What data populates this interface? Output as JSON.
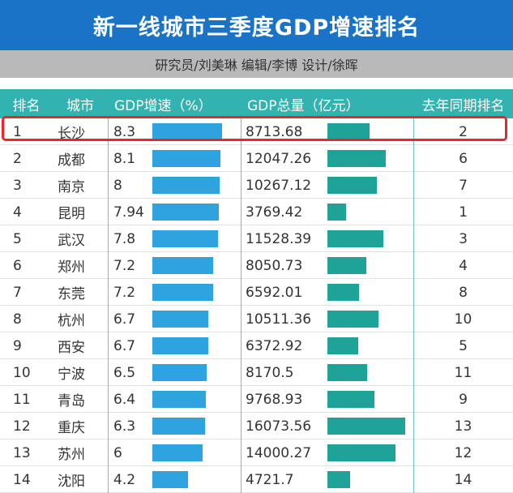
{
  "header": {
    "title": "新一线城市三季度GDP增速排名",
    "researcher": "研究员/刘美琳",
    "editor": "编辑/李博",
    "designer": "设计/徐晖"
  },
  "columns": {
    "rank": "排名",
    "city": "城市",
    "growth": "GDP增速（%）",
    "total": "GDP总量（亿元）",
    "last_year_rank": "去年同期排名"
  },
  "highlight_color": "#e8262b",
  "colors": {
    "title_bg": "#1a73c6",
    "header_bg": "#32b2b0",
    "growth_bar": "#2ea3df",
    "total_bar": "#1fa298"
  },
  "chart_data": {
    "type": "table",
    "title": "新一线城市三季度GDP增速排名",
    "highlighted_rank": 1,
    "rows": [
      {
        "rank": "1",
        "city": "长沙",
        "growth": 8.3,
        "growth_label": "8.3",
        "total": 8713.68,
        "total_label": "8713.68",
        "last_year_rank": "2"
      },
      {
        "rank": "2",
        "city": "成都",
        "growth": 8.1,
        "growth_label": "8.1",
        "total": 12047.26,
        "total_label": "12047.26",
        "last_year_rank": "6"
      },
      {
        "rank": "3",
        "city": "南京",
        "growth": 8,
        "growth_label": "8",
        "total": 10267.12,
        "total_label": "10267.12",
        "last_year_rank": "7"
      },
      {
        "rank": "4",
        "city": "昆明",
        "growth": 7.94,
        "growth_label": "7.94",
        "total": 3769.42,
        "total_label": "3769.42",
        "last_year_rank": "1"
      },
      {
        "rank": "5",
        "city": "武汉",
        "growth": 7.8,
        "growth_label": "7.8",
        "total": 11528.39,
        "total_label": "11528.39",
        "last_year_rank": "3"
      },
      {
        "rank": "6",
        "city": "郑州",
        "growth": 7.2,
        "growth_label": "7.2",
        "total": 8050.73,
        "total_label": "8050.73",
        "last_year_rank": "4"
      },
      {
        "rank": "7",
        "city": "东莞",
        "growth": 7.2,
        "growth_label": "7.2",
        "total": 6592.01,
        "total_label": "6592.01",
        "last_year_rank": "8"
      },
      {
        "rank": "8",
        "city": "杭州",
        "growth": 6.7,
        "growth_label": "6.7",
        "total": 10511.36,
        "total_label": "10511.36",
        "last_year_rank": "10"
      },
      {
        "rank": "9",
        "city": "西安",
        "growth": 6.7,
        "growth_label": "6.7",
        "total": 6372.92,
        "total_label": "6372.92",
        "last_year_rank": "5"
      },
      {
        "rank": "10",
        "city": "宁波",
        "growth": 6.5,
        "growth_label": "6.5",
        "total": 8170.5,
        "total_label": "8170.5",
        "last_year_rank": "11"
      },
      {
        "rank": "11",
        "city": "青岛",
        "growth": 6.4,
        "growth_label": "6.4",
        "total": 9768.93,
        "total_label": "9768.93",
        "last_year_rank": "9"
      },
      {
        "rank": "12",
        "city": "重庆",
        "growth": 6.3,
        "growth_label": "6.3",
        "total": 16073.56,
        "total_label": "16073.56",
        "last_year_rank": "13"
      },
      {
        "rank": "13",
        "city": "苏州",
        "growth": 6,
        "growth_label": "6",
        "total": 14000.27,
        "total_label": "14000.27",
        "last_year_rank": "12"
      },
      {
        "rank": "14",
        "city": "沈阳",
        "growth": 4.2,
        "growth_label": "4.2",
        "total": 4721.7,
        "total_label": "4721.7",
        "last_year_rank": "14"
      }
    ]
  }
}
